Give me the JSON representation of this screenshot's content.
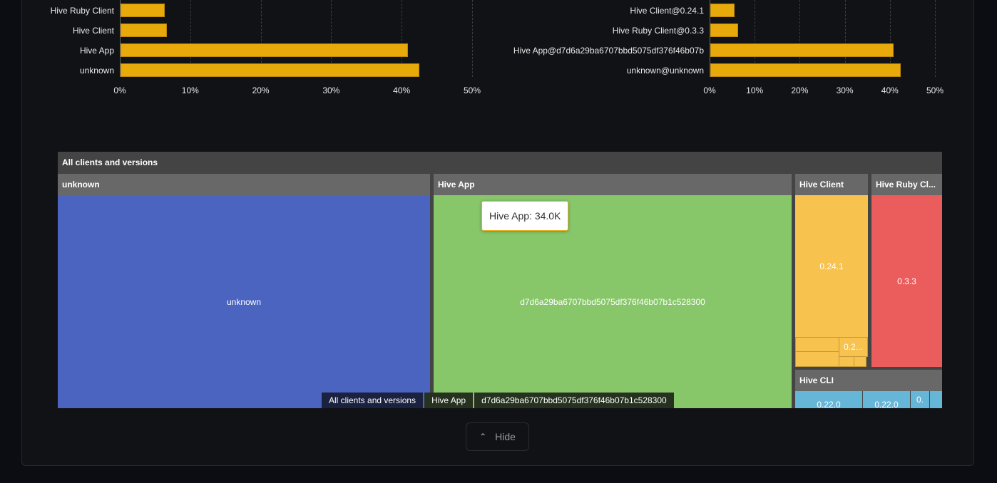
{
  "chart_data": [
    {
      "type": "bar",
      "orientation": "horizontal",
      "categories": [
        "Hive Ruby Client",
        "Hive Client",
        "Hive App",
        "unknown"
      ],
      "values": [
        6.3,
        6.6,
        40.8,
        42.4
      ],
      "xlim": [
        0,
        50
      ],
      "xticks": [
        "0%",
        "10%",
        "20%",
        "30%",
        "40%",
        "50%"
      ],
      "grid": true,
      "color": "#e8a90a"
    },
    {
      "type": "bar",
      "orientation": "horizontal",
      "categories": [
        "Hive Client@0.24.1",
        "Hive Ruby Client@0.3.3",
        "Hive App@d7d6a29ba6707bbd5075df376f46b07b",
        "unknown@unknown"
      ],
      "values": [
        5.4,
        6.2,
        40.7,
        42.2
      ],
      "xlim": [
        0,
        50
      ],
      "xticks": [
        "0%",
        "10%",
        "20%",
        "30%",
        "40%",
        "50%"
      ],
      "grid": true,
      "color": "#e8a90a"
    }
  ],
  "treemap": {
    "title": "All clients and versions",
    "groups": [
      {
        "name": "unknown",
        "cell": "unknown",
        "color": "#4a64c0"
      },
      {
        "name": "Hive App",
        "cell": "d7d6a29ba6707bbd5075df376f46b07b1c528300",
        "color": "#88c66a"
      },
      {
        "name": "Hive Client",
        "cell": "0.24.1",
        "small": "0.2...",
        "color": "#f7c24d"
      },
      {
        "name": "Hive Ruby Cl...",
        "cell": "0.3.3",
        "color": "#eb5c5c"
      },
      {
        "name": "Hive CLI",
        "cells": [
          "0.22.0",
          "0.22.0",
          "0."
        ],
        "color": "#66b6d8"
      }
    ],
    "tooltip": "Hive App: 34.0K",
    "breadcrumb": [
      "All clients and versions",
      "Hive App",
      "d7d6a29ba6707bbd5075df376f46b07b1c528300"
    ]
  },
  "hide_label": "Hide"
}
